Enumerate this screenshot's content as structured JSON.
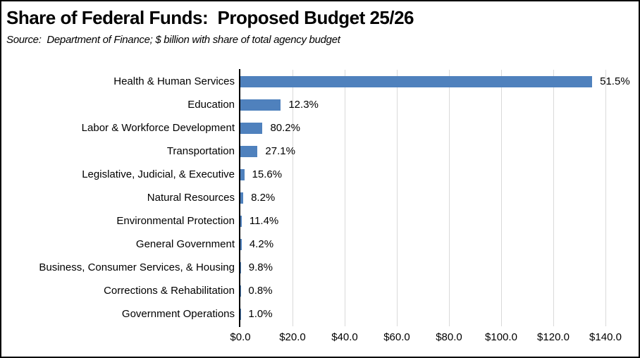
{
  "title": "Share of Federal Funds:  Proposed Budget 25/26",
  "subtitle": "Source:  Department of Finance; $ billion with share of total agency budget",
  "chart_data": {
    "type": "bar",
    "orientation": "horizontal",
    "title": "Share of Federal Funds:  Proposed Budget 25/26",
    "subtitle": "Source:  Department of Finance; $ billion with share of total agency budget",
    "categories": [
      "Health & Human Services",
      "Education",
      "Labor & Workforce Development",
      "Transportation",
      "Legislative, Judicial, & Executive",
      "Natural Resources",
      "Environmental Protection",
      "General Government",
      "Business, Consumer Services, & Housing",
      "Corrections & Rehabilitation",
      "Government Operations"
    ],
    "values_billion": [
      134.9,
      15.5,
      8.5,
      6.6,
      1.5,
      1.1,
      0.5,
      0.5,
      0.2,
      0.1,
      0.1
    ],
    "data_labels": [
      "51.5%",
      "12.3%",
      "80.2%",
      "27.1%",
      "15.6%",
      "8.2%",
      "11.4%",
      "4.2%",
      "9.8%",
      "0.8%",
      "1.0%"
    ],
    "x_ticks": [
      "$0.0",
      "$20.0",
      "$40.0",
      "$60.0",
      "$80.0",
      "$100.0",
      "$120.0",
      "$140.0"
    ],
    "x_tick_values": [
      0,
      20,
      40,
      60,
      80,
      100,
      120,
      140
    ],
    "xlim": [
      0,
      140
    ],
    "xlabel": "",
    "ylabel": "",
    "grid": true,
    "legend": false,
    "colors": {
      "bar": "#4F81BD",
      "gridline": "#D9D9D9",
      "axis": "#000000",
      "text": "#000000"
    }
  }
}
